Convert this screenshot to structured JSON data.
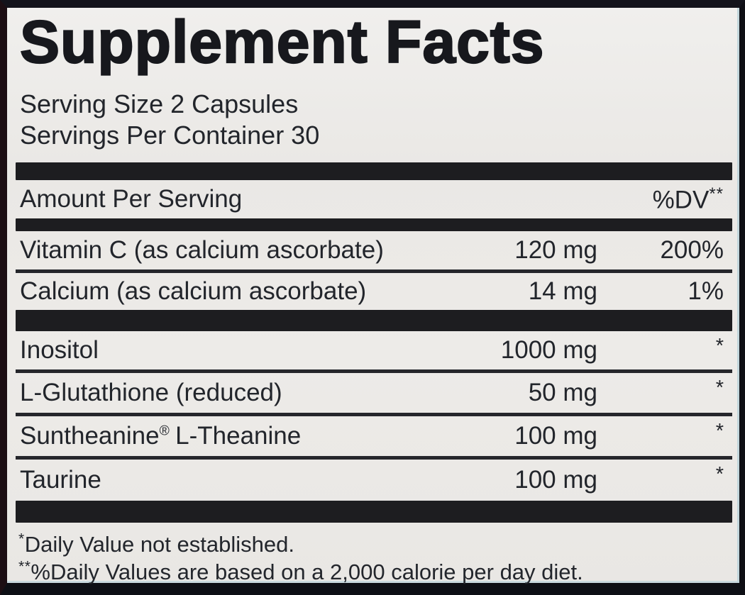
{
  "label": {
    "title": "Supplement Facts",
    "serving_size": "Serving Size 2 Capsules",
    "servings_per_container": "Servings Per Container 30",
    "amount_header": "Amount Per Serving",
    "dv_header": "%DV",
    "dv_header_marker": "**",
    "rows": [
      {
        "name": "Vitamin C (as calcium ascorbate)",
        "amount": "120 mg",
        "dv": "200%"
      },
      {
        "name": "Calcium (as calcium ascorbate)",
        "amount": "14 mg",
        "dv": "1%"
      },
      {
        "name": "Inositol",
        "amount": "1000 mg",
        "dv": "*"
      },
      {
        "name": "L-Glutathione (reduced)",
        "amount": "50 mg",
        "dv": "*"
      },
      {
        "name_pre": "Suntheanine",
        "name_reg": "®",
        "name_post": "L-Theanine",
        "amount": "100 mg",
        "dv": "*"
      },
      {
        "name": "Taurine",
        "amount": "100 mg",
        "dv": "*"
      }
    ],
    "footnotes": [
      {
        "marker": "*",
        "text": "Daily Value not established."
      },
      {
        "marker": "**",
        "text": "%Daily Values are based on a 2,000 calorie per day diet."
      }
    ],
    "colors": {
      "background": "#edebe8",
      "text": "#22252b",
      "bar": "#1d1d20",
      "frame": "#13131b"
    }
  }
}
